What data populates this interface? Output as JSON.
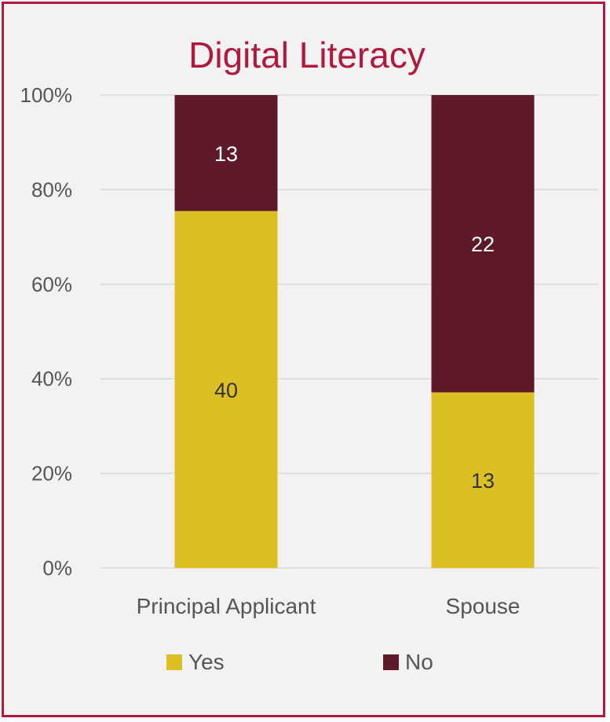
{
  "chart_data": {
    "type": "bar",
    "stacked": "percent",
    "title": "Digital Literacy",
    "categories": [
      "Principal Applicant",
      "Spouse"
    ],
    "series": [
      {
        "name": "Yes",
        "values": [
          40,
          13
        ],
        "color": "#dcbf22"
      },
      {
        "name": "No",
        "values": [
          13,
          22
        ],
        "color": "#5e1a28"
      }
    ],
    "yticks": [
      "0%",
      "20%",
      "40%",
      "60%",
      "80%",
      "100%"
    ],
    "ylim": [
      0,
      100
    ],
    "grid": true,
    "legend": "bottom"
  },
  "colors": {
    "title": "#b0183d",
    "border": "#b0183d",
    "background": "#f2f2f2",
    "label_on_yes": "#333333",
    "label_on_no": "#ffffff",
    "axis_text": "#555555",
    "grid": "#d9d9d9"
  }
}
